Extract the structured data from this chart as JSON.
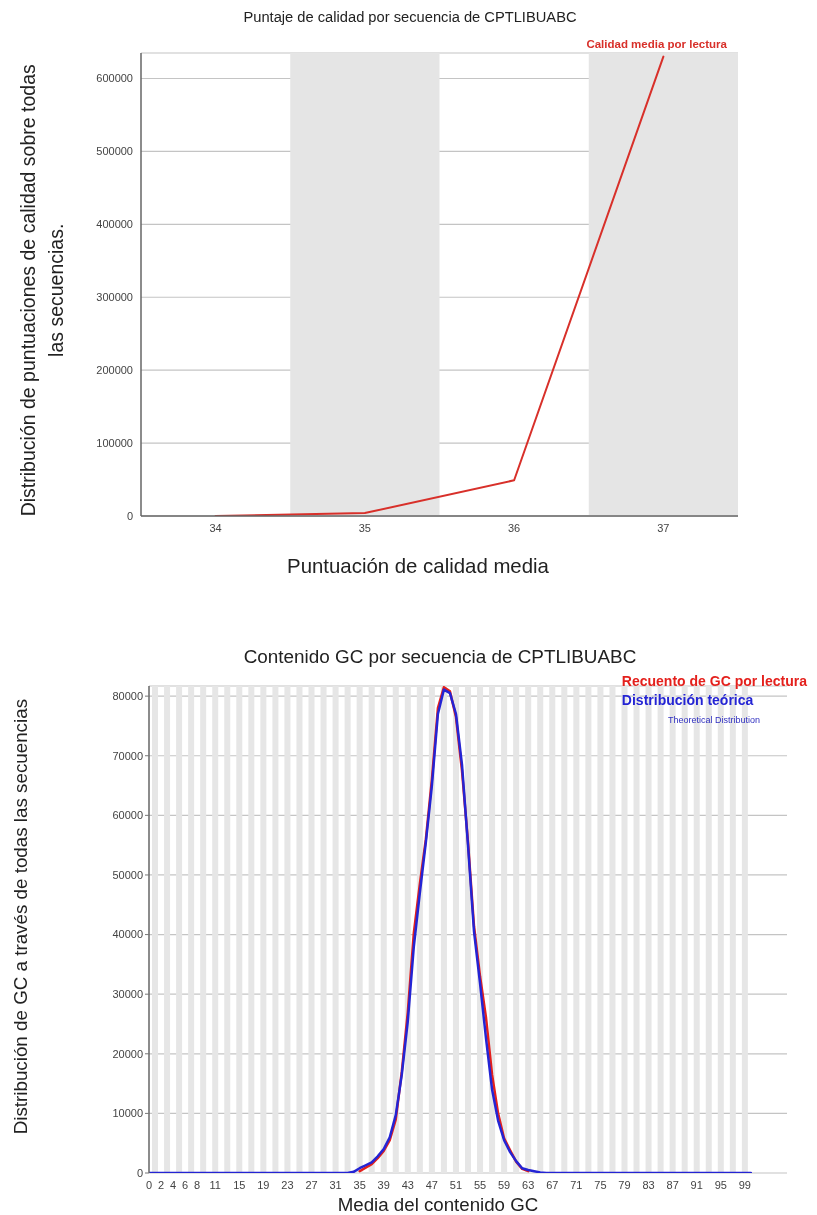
{
  "chart_data": [
    {
      "type": "line",
      "title": "Puntaje de calidad por secuencia de CPTLIBUABC",
      "xlabel": "Puntuación de calidad media",
      "ylabel": "Distribución de puntuaciones de calidad sobre todas las secuencias.",
      "x": [
        34,
        35,
        36,
        37
      ],
      "series": [
        {
          "name": "Calidad media por lectura",
          "color": "#d8302a",
          "values": [
            0,
            4000,
            49000,
            630000
          ]
        }
      ],
      "xlim": [
        33.5,
        37.5
      ],
      "xticks": [
        34,
        35,
        36,
        37
      ],
      "ylim": [
        0,
        635000
      ],
      "yticks": [
        0,
        100000,
        200000,
        300000,
        400000,
        500000,
        600000
      ],
      "grid": "y",
      "legend": "top right",
      "bands": [
        {
          "axis": "x",
          "from": 34.5,
          "to": 35.5,
          "color": "#e5e5e5"
        },
        {
          "axis": "x",
          "from": 36.5,
          "to": 37.5,
          "color": "#e5e5e5"
        }
      ]
    },
    {
      "type": "line",
      "title": "Contenido GC por secuencia de CPTLIBUABC",
      "xlabel": "Media del contenido GC",
      "ylabel": "Distribución de GC a través de todas las secuencias",
      "x": [
        0,
        1,
        2,
        3,
        4,
        5,
        6,
        7,
        8,
        9,
        10,
        11,
        12,
        13,
        14,
        15,
        16,
        17,
        18,
        19,
        20,
        21,
        22,
        23,
        24,
        25,
        26,
        27,
        28,
        29,
        30,
        31,
        32,
        33,
        34,
        35,
        36,
        37,
        38,
        39,
        40,
        41,
        42,
        43,
        44,
        45,
        46,
        47,
        48,
        49,
        50,
        51,
        52,
        53,
        54,
        55,
        56,
        57,
        58,
        59,
        60,
        61,
        62,
        63,
        64,
        65,
        66,
        67,
        68,
        69,
        70,
        71,
        72,
        73,
        74,
        75,
        76,
        77,
        78,
        79,
        80,
        81,
        82,
        83,
        84,
        85,
        86,
        87,
        88,
        89,
        90,
        91,
        92,
        93,
        94,
        95,
        96,
        97,
        98,
        99,
        100
      ],
      "series": [
        {
          "name": "Recuento de GC por lectura",
          "color": "#e4201c",
          "values": [
            null,
            null,
            null,
            null,
            null,
            null,
            null,
            null,
            null,
            null,
            null,
            null,
            null,
            null,
            null,
            null,
            null,
            null,
            null,
            null,
            null,
            null,
            null,
            null,
            null,
            null,
            null,
            null,
            null,
            null,
            null,
            null,
            null,
            null,
            null,
            300,
            900,
            1500,
            2500,
            3700,
            5500,
            9000,
            17000,
            27000,
            40300,
            48500,
            56000,
            66000,
            78000,
            81500,
            80800,
            76500,
            67500,
            55500,
            41400,
            33000,
            26000,
            16500,
            10000,
            5800,
            3800,
            1900,
            700,
            300,
            null,
            null,
            null,
            null,
            null,
            null,
            null,
            null,
            null,
            null,
            null,
            null,
            null,
            null,
            null,
            null,
            null,
            null,
            null,
            null,
            null,
            null,
            null,
            null,
            null,
            null,
            null,
            null,
            null,
            null,
            null,
            null,
            null,
            null,
            null,
            null,
            null
          ]
        },
        {
          "name": "Distribución teórica",
          "color": "#2424d4",
          "values": [
            0,
            0,
            0,
            0,
            0,
            0,
            0,
            0,
            0,
            0,
            0,
            0,
            0,
            0,
            0,
            0,
            0,
            0,
            0,
            0,
            0,
            0,
            0,
            0,
            0,
            0,
            0,
            0,
            0,
            0,
            0,
            0,
            0,
            0,
            200,
            800,
            1300,
            1800,
            2800,
            4000,
            6000,
            9700,
            16500,
            25500,
            38000,
            47000,
            55500,
            65000,
            77000,
            81100,
            80500,
            77000,
            68500,
            55000,
            40500,
            31800,
            22500,
            14000,
            8800,
            5500,
            3500,
            2000,
            800,
            500,
            300,
            100,
            0,
            0,
            0,
            0,
            0,
            0,
            0,
            0,
            0,
            0,
            0,
            0,
            0,
            0,
            0,
            0,
            0,
            0,
            0,
            0,
            0,
            0,
            0,
            0,
            0,
            0,
            0,
            0,
            0,
            0,
            0,
            0,
            0,
            0,
            0
          ]
        }
      ],
      "xlim": [
        0,
        106
      ],
      "xticks": [
        0,
        2,
        4,
        6,
        8,
        11,
        15,
        19,
        23,
        27,
        31,
        35,
        39,
        43,
        47,
        51,
        55,
        59,
        63,
        67,
        71,
        75,
        79,
        83,
        87,
        91,
        95,
        99
      ],
      "ylim": [
        0,
        81700
      ],
      "yticks": [
        0,
        10000,
        20000,
        30000,
        40000,
        50000,
        60000,
        70000,
        80000
      ],
      "grid": "y",
      "legend": "top right",
      "annotations": [
        "Theoretical Distribution"
      ],
      "bands": [
        {
          "axis": "x",
          "from": 0.5,
          "to": 1.5,
          "color": "#e6e6e6"
        },
        {
          "axis": "x",
          "from": 2.5,
          "to": 3.5,
          "color": "#e6e6e6"
        },
        {
          "axis": "x",
          "from": 4.5,
          "to": 5.5,
          "color": "#e6e6e6"
        },
        {
          "axis": "x",
          "from": 6.5,
          "to": 7.5,
          "color": "#e6e6e6"
        },
        {
          "axis": "x",
          "from": 8.5,
          "to": 9.5,
          "color": "#e6e6e6"
        },
        {
          "axis": "x",
          "from": 10.5,
          "to": 11.5,
          "color": "#e6e6e6"
        },
        {
          "axis": "x",
          "from": 12.5,
          "to": 13.5,
          "color": "#e6e6e6"
        },
        {
          "axis": "x",
          "from": 14.5,
          "to": 15.5,
          "color": "#e6e6e6"
        },
        {
          "axis": "x",
          "from": 16.5,
          "to": 17.5,
          "color": "#e6e6e6"
        },
        {
          "axis": "x",
          "from": 18.5,
          "to": 19.5,
          "color": "#e6e6e6"
        },
        {
          "axis": "x",
          "from": 20.5,
          "to": 21.5,
          "color": "#e6e6e6"
        },
        {
          "axis": "x",
          "from": 22.5,
          "to": 23.5,
          "color": "#e6e6e6"
        },
        {
          "axis": "x",
          "from": 24.5,
          "to": 25.5,
          "color": "#e6e6e6"
        },
        {
          "axis": "x",
          "from": 26.5,
          "to": 27.5,
          "color": "#e6e6e6"
        },
        {
          "axis": "x",
          "from": 28.5,
          "to": 29.5,
          "color": "#e6e6e6"
        },
        {
          "axis": "x",
          "from": 30.5,
          "to": 31.5,
          "color": "#e6e6e6"
        },
        {
          "axis": "x",
          "from": 32.5,
          "to": 33.5,
          "color": "#e6e6e6"
        },
        {
          "axis": "x",
          "from": 34.5,
          "to": 35.5,
          "color": "#e6e6e6"
        },
        {
          "axis": "x",
          "from": 36.5,
          "to": 37.5,
          "color": "#e6e6e6"
        },
        {
          "axis": "x",
          "from": 38.5,
          "to": 39.5,
          "color": "#e6e6e6"
        },
        {
          "axis": "x",
          "from": 40.5,
          "to": 41.5,
          "color": "#e6e6e6"
        },
        {
          "axis": "x",
          "from": 42.5,
          "to": 43.5,
          "color": "#e6e6e6"
        },
        {
          "axis": "x",
          "from": 44.5,
          "to": 45.5,
          "color": "#e6e6e6"
        },
        {
          "axis": "x",
          "from": 46.5,
          "to": 47.5,
          "color": "#e6e6e6"
        },
        {
          "axis": "x",
          "from": 48.5,
          "to": 49.5,
          "color": "#e6e6e6"
        },
        {
          "axis": "x",
          "from": 50.5,
          "to": 51.5,
          "color": "#e6e6e6"
        },
        {
          "axis": "x",
          "from": 52.5,
          "to": 53.5,
          "color": "#e6e6e6"
        },
        {
          "axis": "x",
          "from": 54.5,
          "to": 55.5,
          "color": "#e6e6e6"
        },
        {
          "axis": "x",
          "from": 56.5,
          "to": 57.5,
          "color": "#e6e6e6"
        },
        {
          "axis": "x",
          "from": 58.5,
          "to": 59.5,
          "color": "#e6e6e6"
        },
        {
          "axis": "x",
          "from": 60.5,
          "to": 61.5,
          "color": "#e6e6e6"
        },
        {
          "axis": "x",
          "from": 62.5,
          "to": 63.5,
          "color": "#e6e6e6"
        },
        {
          "axis": "x",
          "from": 64.5,
          "to": 65.5,
          "color": "#e6e6e6"
        },
        {
          "axis": "x",
          "from": 66.5,
          "to": 67.5,
          "color": "#e6e6e6"
        },
        {
          "axis": "x",
          "from": 68.5,
          "to": 69.5,
          "color": "#e6e6e6"
        },
        {
          "axis": "x",
          "from": 70.5,
          "to": 71.5,
          "color": "#e6e6e6"
        },
        {
          "axis": "x",
          "from": 72.5,
          "to": 73.5,
          "color": "#e6e6e6"
        },
        {
          "axis": "x",
          "from": 74.5,
          "to": 75.5,
          "color": "#e6e6e6"
        },
        {
          "axis": "x",
          "from": 76.5,
          "to": 77.5,
          "color": "#e6e6e6"
        },
        {
          "axis": "x",
          "from": 78.5,
          "to": 79.5,
          "color": "#e6e6e6"
        },
        {
          "axis": "x",
          "from": 80.5,
          "to": 81.5,
          "color": "#e6e6e6"
        },
        {
          "axis": "x",
          "from": 82.5,
          "to": 83.5,
          "color": "#e6e6e6"
        },
        {
          "axis": "x",
          "from": 84.5,
          "to": 85.5,
          "color": "#e6e6e6"
        },
        {
          "axis": "x",
          "from": 86.5,
          "to": 87.5,
          "color": "#e6e6e6"
        },
        {
          "axis": "x",
          "from": 88.5,
          "to": 89.5,
          "color": "#e6e6e6"
        },
        {
          "axis": "x",
          "from": 90.5,
          "to": 91.5,
          "color": "#e6e6e6"
        },
        {
          "axis": "x",
          "from": 92.5,
          "to": 93.5,
          "color": "#e6e6e6"
        },
        {
          "axis": "x",
          "from": 94.5,
          "to": 95.5,
          "color": "#e6e6e6"
        },
        {
          "axis": "x",
          "from": 96.5,
          "to": 97.5,
          "color": "#e6e6e6"
        },
        {
          "axis": "x",
          "from": 98.5,
          "to": 99.5,
          "color": "#e6e6e6"
        }
      ]
    }
  ]
}
